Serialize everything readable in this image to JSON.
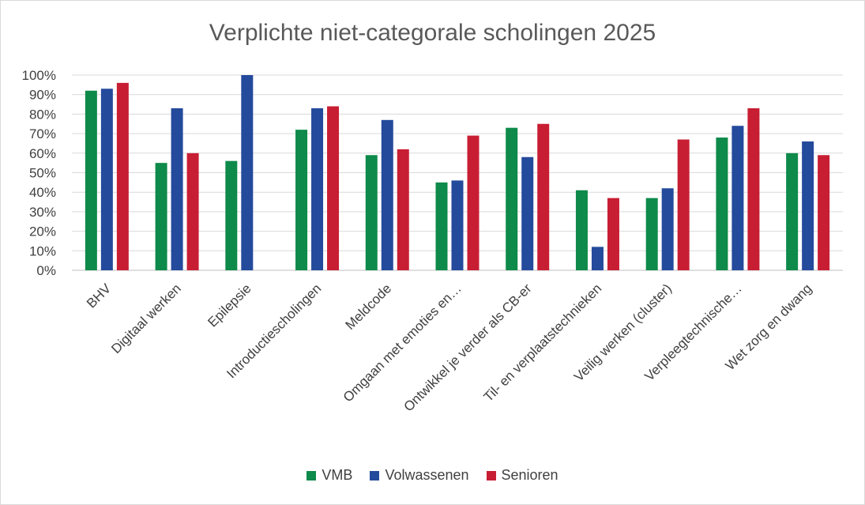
{
  "chart_data": {
    "type": "bar",
    "title": "Verplichte niet-categorale scholingen 2025",
    "categories": [
      "BHV",
      "Digitaal werken",
      "Epilepsie",
      "Introductiescholingen",
      "Meldcode",
      "Omgaan met emoties en…",
      "Ontwikkel je verder als CB-er",
      "Til- en verplaatstechnieken",
      "Veilig werken (cluster)",
      "Verpleegtechnische…",
      "Wet zorg en dwang"
    ],
    "series": [
      {
        "name": "VMB",
        "color": "#0e8a4a",
        "values": [
          92,
          55,
          56,
          72,
          59,
          45,
          73,
          41,
          37,
          68,
          60
        ]
      },
      {
        "name": "Volwassenen",
        "color": "#244a9c",
        "values": [
          93,
          83,
          100,
          83,
          77,
          46,
          58,
          12,
          42,
          74,
          66
        ]
      },
      {
        "name": "Senioren",
        "color": "#c81e33",
        "values": [
          96,
          60,
          null,
          84,
          62,
          69,
          75,
          37,
          67,
          83,
          59
        ]
      }
    ],
    "yticks": [
      "0%",
      "10%",
      "20%",
      "30%",
      "40%",
      "50%",
      "60%",
      "70%",
      "80%",
      "90%",
      "100%"
    ],
    "ylim": [
      0,
      100
    ],
    "grid": true,
    "legend_position": "bottom"
  }
}
